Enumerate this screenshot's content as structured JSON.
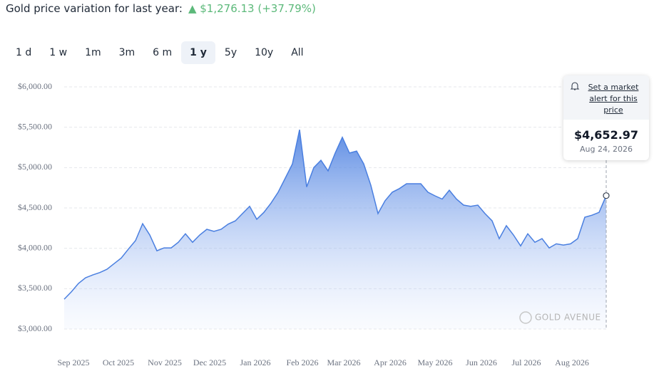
{
  "header": {
    "title": "Gold price variation for last year:",
    "change": "$1,276.13",
    "percent": "(+37.79%)"
  },
  "tabs": [
    "1 d",
    "1 w",
    "1m",
    "3m",
    "6 m",
    "1 y",
    "5y",
    "10y",
    "All"
  ],
  "active_tab": 5,
  "tooltip": {
    "alert": "Set a market alert for this price",
    "price": "$4,652.97",
    "date": "Aug 24, 2026"
  },
  "watermark": "GOLD AVENUE",
  "chart_data": {
    "type": "area",
    "color": "#4a7fe0",
    "values": [
      3370,
      3460,
      3565,
      3635,
      3670,
      3700,
      3740,
      3810,
      3880,
      3990,
      4095,
      4305,
      4165,
      3970,
      4005,
      4005,
      4075,
      4180,
      4075,
      4165,
      4235,
      4210,
      4235,
      4300,
      4340,
      4430,
      4520,
      4360,
      4445,
      4560,
      4695,
      4870,
      5045,
      5470,
      4760,
      5000,
      5090,
      4960,
      5180,
      5375,
      5180,
      5205,
      5045,
      4780,
      4430,
      4590,
      4695,
      4740,
      4800,
      4800,
      4800,
      4695,
      4650,
      4610,
      4720,
      4610,
      4535,
      4520,
      4535,
      4430,
      4340,
      4120,
      4280,
      4165,
      4030,
      4180,
      4075,
      4120,
      4005,
      4055,
      4040,
      4055,
      4120,
      4385,
      4410,
      4445,
      4652.97
    ],
    "xlim": [
      0,
      76
    ],
    "xticks": [
      {
        "value": 1.3,
        "label": "Sep 2025"
      },
      {
        "value": 7.6,
        "label": "Oct 2025"
      },
      {
        "value": 14.1,
        "label": "Nov 2025"
      },
      {
        "value": 20.4,
        "label": "Dec 2025"
      },
      {
        "value": 26.8,
        "label": "Jan 2026"
      },
      {
        "value": 33.4,
        "label": "Feb 2026"
      },
      {
        "value": 39.2,
        "label": "Mar 2026"
      },
      {
        "value": 45.7,
        "label": "Apr 2026"
      },
      {
        "value": 52,
        "label": "May 2026"
      },
      {
        "value": 58.5,
        "label": "Jun 2026"
      },
      {
        "value": 64.8,
        "label": "Jul 2026"
      },
      {
        "value": 71.2,
        "label": "Aug 2026"
      }
    ],
    "ylim": [
      3000,
      6000
    ],
    "yticks": [
      {
        "value": 3000,
        "label": "$3,000.00"
      },
      {
        "value": 3500,
        "label": "$3,500.00"
      },
      {
        "value": 4000,
        "label": "$4,000.00"
      },
      {
        "value": 4500,
        "label": "$4,500.00"
      },
      {
        "value": 5000,
        "label": "$5,000.00"
      },
      {
        "value": 5500,
        "label": "$5,500.00"
      },
      {
        "value": 6000,
        "label": "$6,000.00"
      }
    ],
    "grid": true
  }
}
